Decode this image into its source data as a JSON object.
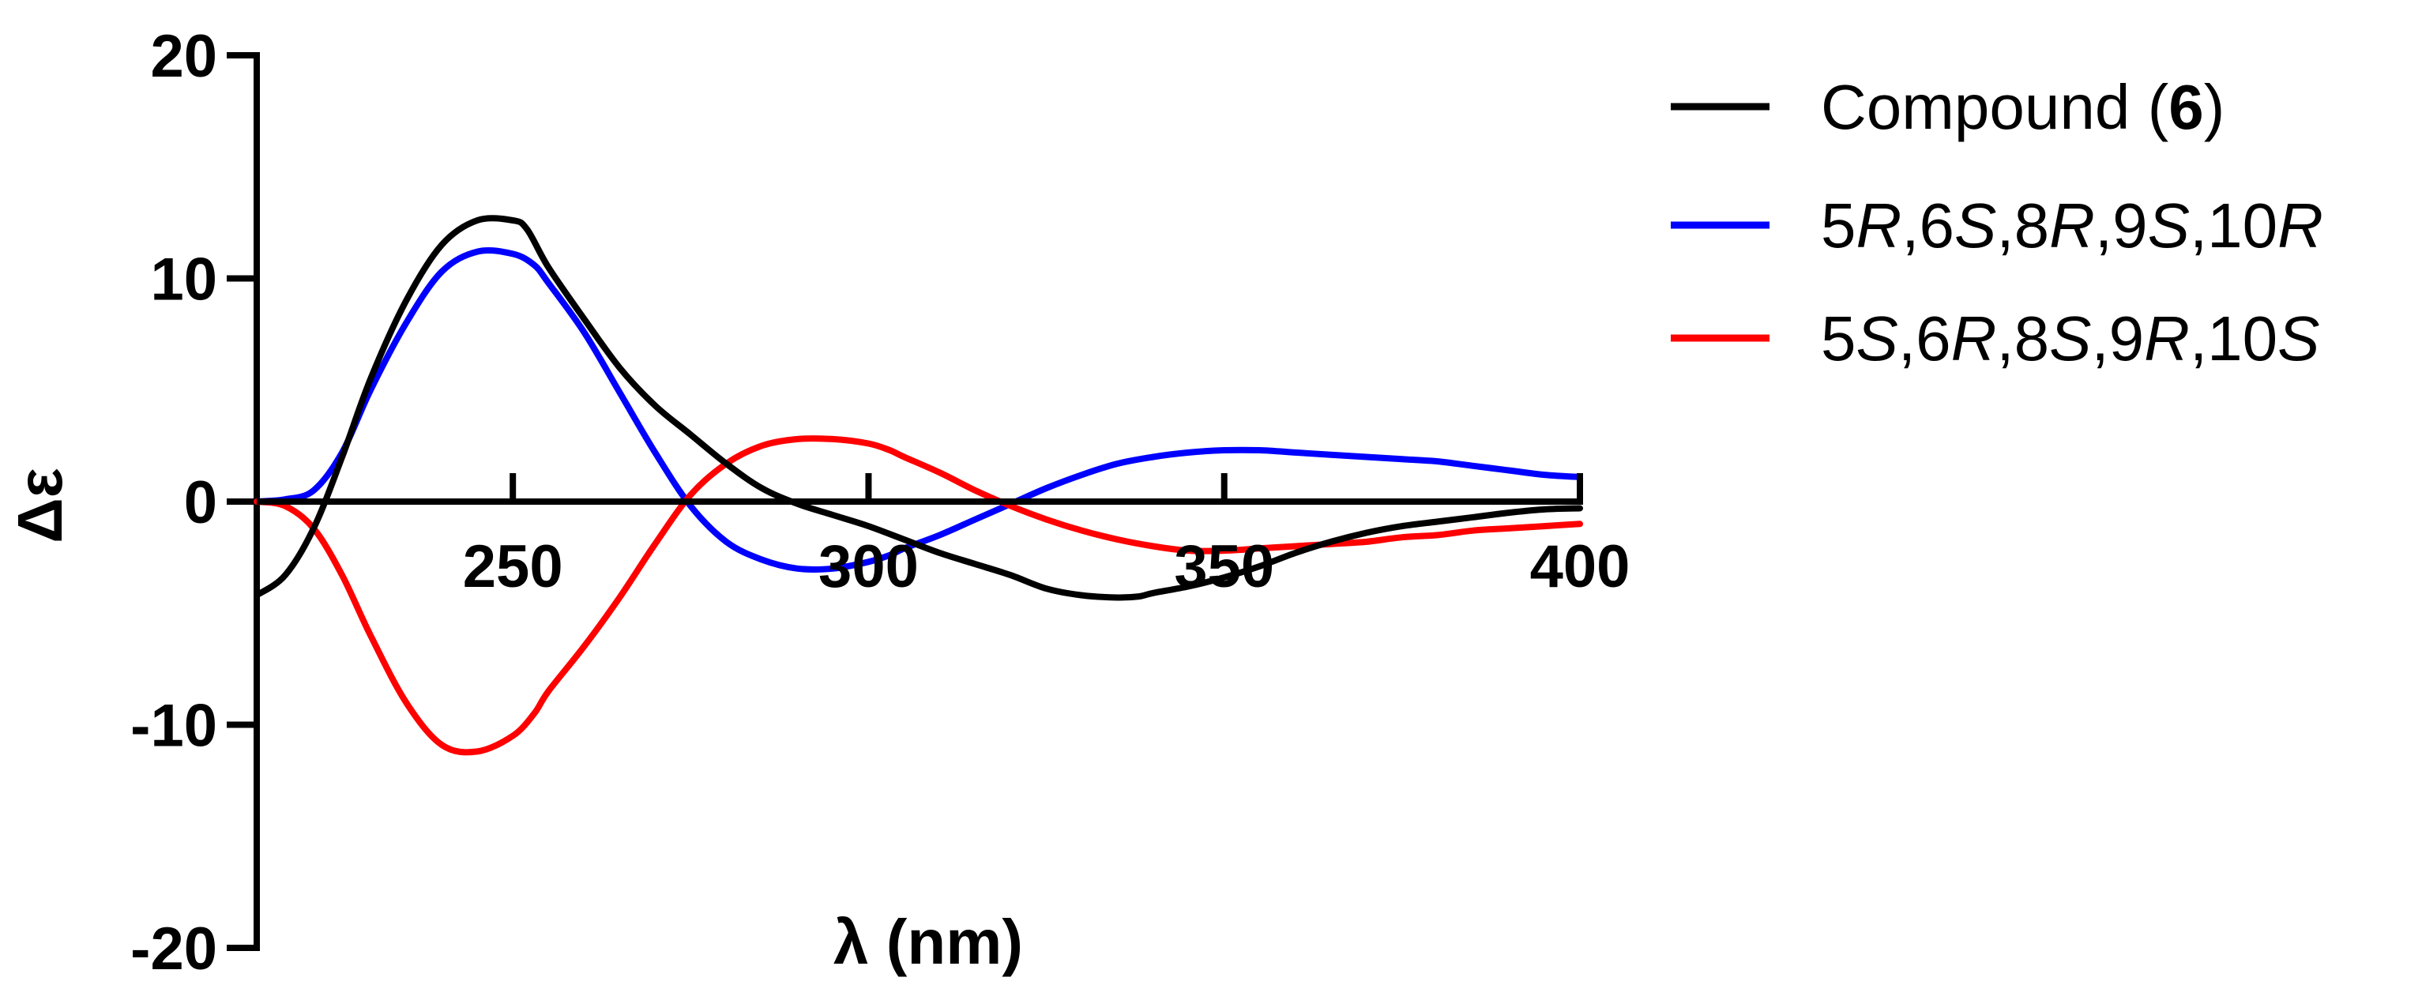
{
  "chart_data": {
    "type": "line",
    "xlabel": "λ (nm)",
    "ylabel": "Δε",
    "xlim": [
      214,
      400
    ],
    "ylim": [
      -20,
      20
    ],
    "x_ticks": [
      250,
      300,
      350,
      400
    ],
    "y_ticks": [
      -20,
      -10,
      0,
      10,
      20
    ],
    "x_tick_labels": [
      "250",
      "300",
      "350",
      "400"
    ],
    "y_tick_labels": [
      "-20",
      "-10",
      "0",
      "10",
      "20"
    ],
    "legend_position": "top-right",
    "series": [
      {
        "name": "Compound (6)",
        "color": "#000000",
        "x": [
          214,
          218,
          222,
          226,
          230,
          235,
          240,
          245,
          250,
          252,
          255,
          260,
          265,
          270,
          275,
          280,
          285,
          290,
          295,
          300,
          305,
          310,
          315,
          320,
          325,
          330,
          335,
          338,
          340,
          345,
          350,
          355,
          360,
          365,
          370,
          375,
          380,
          385,
          390,
          395,
          400
        ],
        "y": [
          -4.2,
          -3.3,
          -1.2,
          2.0,
          5.5,
          9.0,
          11.5,
          12.6,
          12.6,
          12.2,
          10.5,
          8.2,
          6.0,
          4.3,
          3.0,
          1.7,
          0.6,
          -0.1,
          -0.6,
          -1.1,
          -1.7,
          -2.3,
          -2.8,
          -3.3,
          -3.9,
          -4.2,
          -4.3,
          -4.25,
          -4.1,
          -3.8,
          -3.4,
          -2.9,
          -2.3,
          -1.8,
          -1.4,
          -1.1,
          -0.9,
          -0.7,
          -0.5,
          -0.35,
          -0.3
        ]
      },
      {
        "name": "5R,6S,8R,9S,10R",
        "color": "#0000ff",
        "x": [
          214,
          218,
          222,
          226,
          230,
          235,
          240,
          245,
          250,
          253,
          255,
          260,
          265,
          270,
          275,
          280,
          285,
          290,
          295,
          300,
          303,
          305,
          310,
          315,
          320,
          325,
          330,
          335,
          340,
          345,
          350,
          355,
          360,
          365,
          370,
          375,
          380,
          385,
          390,
          395,
          400
        ],
        "y": [
          0.0,
          0.1,
          0.5,
          2.2,
          5.0,
          8.0,
          10.3,
          11.2,
          11.1,
          10.6,
          9.8,
          7.6,
          4.9,
          2.2,
          -0.2,
          -1.8,
          -2.6,
          -3.0,
          -3.0,
          -2.7,
          -2.4,
          -2.1,
          -1.5,
          -0.8,
          -0.1,
          0.6,
          1.2,
          1.7,
          2.0,
          2.2,
          2.3,
          2.3,
          2.2,
          2.1,
          2.0,
          1.9,
          1.8,
          1.6,
          1.4,
          1.2,
          1.1
        ]
      },
      {
        "name": "5S,6R,8S,9R,10S",
        "color": "#ff0000",
        "x": [
          214,
          218,
          222,
          226,
          230,
          235,
          240,
          245,
          250,
          253,
          255,
          260,
          265,
          270,
          275,
          280,
          285,
          290,
          295,
          300,
          303,
          305,
          310,
          315,
          320,
          325,
          330,
          335,
          340,
          345,
          350,
          355,
          360,
          365,
          370,
          375,
          380,
          385,
          390,
          395,
          400
        ],
        "y": [
          0.0,
          -0.2,
          -1.2,
          -3.3,
          -6.0,
          -9.0,
          -10.9,
          -11.2,
          -10.5,
          -9.5,
          -8.5,
          -6.5,
          -4.3,
          -1.9,
          0.3,
          1.7,
          2.5,
          2.8,
          2.8,
          2.6,
          2.3,
          2.0,
          1.3,
          0.5,
          -0.2,
          -0.8,
          -1.3,
          -1.7,
          -2.0,
          -2.2,
          -2.2,
          -2.1,
          -2.0,
          -1.9,
          -1.8,
          -1.6,
          -1.5,
          -1.3,
          -1.2,
          -1.1,
          -1.0
        ]
      }
    ]
  }
}
